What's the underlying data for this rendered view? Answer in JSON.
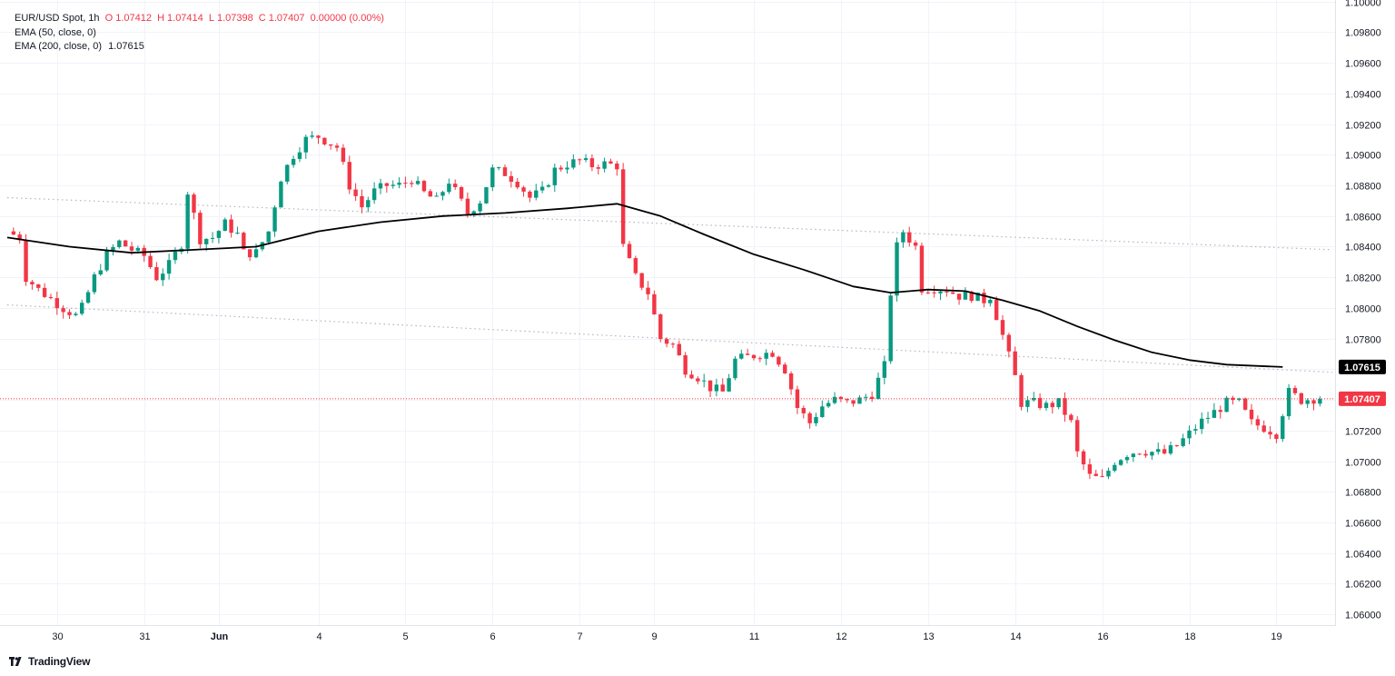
{
  "legend": {
    "symbol": "EUR/USD Spot, 1h",
    "ohlc": {
      "o_label": "O",
      "o": "1.07412",
      "h_label": "H",
      "h": "1.07414",
      "l_label": "L",
      "l": "1.07398",
      "c_label": "C",
      "c": "1.07407",
      "change": "0.00000 (0.00%)"
    },
    "ema50": "EMA (50, close, 0)",
    "ema200": "EMA (200, close, 0)",
    "ema200_value": "1.07615"
  },
  "brand": {
    "name": "TradingView"
  },
  "colors": {
    "up": "#089981",
    "down": "#f23645",
    "ema200": "#000000",
    "grid": "#f0f3fa",
    "trendline": "#b2b5be",
    "last_price": "#f23645"
  },
  "chart_data": {
    "type": "candlestick",
    "title": "EUR/USD Spot, 1h",
    "ylim": [
      1.0593,
      1.1001
    ],
    "y_ticks": [
      "1.10000",
      "1.09800",
      "1.09600",
      "1.09400",
      "1.09200",
      "1.09000",
      "1.08800",
      "1.08600",
      "1.08400",
      "1.08200",
      "1.08000",
      "1.07800",
      "1.07600",
      "1.07400",
      "1.07200",
      "1.07000",
      "1.06800",
      "1.06600",
      "1.06400",
      "1.06200",
      "1.06000"
    ],
    "x_ticks": [
      {
        "label": "30",
        "idx": 8
      },
      {
        "label": "31",
        "idx": 22
      },
      {
        "label": "Jun",
        "idx": 34
      },
      {
        "label": "4",
        "idx": 50
      },
      {
        "label": "5",
        "idx": 64
      },
      {
        "label": "6",
        "idx": 78
      },
      {
        "label": "7",
        "idx": 92
      },
      {
        "label": "9",
        "idx": 104
      },
      {
        "label": "11",
        "idx": 120
      },
      {
        "label": "12",
        "idx": 134
      },
      {
        "label": "13",
        "idx": 148
      },
      {
        "label": "14",
        "idx": 162
      },
      {
        "label": "16",
        "idx": 176
      },
      {
        "label": "18",
        "idx": 190
      },
      {
        "label": "19",
        "idx": 204
      }
    ],
    "n_slots": 208,
    "price_points": [
      [
        0,
        1.085
      ],
      [
        2,
        1.0846
      ],
      [
        3,
        1.082
      ],
      [
        5,
        1.0812
      ],
      [
        7,
        1.0806
      ],
      [
        9,
        1.08
      ],
      [
        11,
        1.0795
      ],
      [
        12,
        1.08
      ],
      [
        14,
        1.082
      ],
      [
        16,
        1.0835
      ],
      [
        18,
        1.0843
      ],
      [
        20,
        1.0838
      ],
      [
        22,
        1.0834
      ],
      [
        24,
        1.082
      ],
      [
        26,
        1.0828
      ],
      [
        28,
        1.0842
      ],
      [
        29,
        1.0876
      ],
      [
        31,
        1.0845
      ],
      [
        33,
        1.0846
      ],
      [
        35,
        1.0855
      ],
      [
        37,
        1.0848
      ],
      [
        38,
        1.0836
      ],
      [
        40,
        1.0836
      ],
      [
        42,
        1.085
      ],
      [
        44,
        1.0885
      ],
      [
        46,
        1.09
      ],
      [
        48,
        1.091
      ],
      [
        50,
        1.0912
      ],
      [
        53,
        1.0905
      ],
      [
        55,
        1.088
      ],
      [
        57,
        1.0866
      ],
      [
        59,
        1.0876
      ],
      [
        61,
        1.088
      ],
      [
        63,
        1.088
      ],
      [
        65,
        1.0884
      ],
      [
        67,
        1.0875
      ],
      [
        69,
        1.087
      ],
      [
        71,
        1.0883
      ],
      [
        72,
        1.0876
      ],
      [
        74,
        1.0862
      ],
      [
        76,
        1.087
      ],
      [
        78,
        1.089
      ],
      [
        80,
        1.0888
      ],
      [
        82,
        1.0882
      ],
      [
        84,
        1.0872
      ],
      [
        86,
        1.0876
      ],
      [
        88,
        1.089
      ],
      [
        90,
        1.0894
      ],
      [
        92,
        1.0896
      ],
      [
        94,
        1.0893
      ],
      [
        96,
        1.0894
      ],
      [
        98,
        1.0893
      ],
      [
        99,
        1.084
      ],
      [
        101,
        1.082
      ],
      [
        103,
        1.081
      ],
      [
        105,
        1.078
      ],
      [
        107,
        1.0776
      ],
      [
        109,
        1.076
      ],
      [
        111,
        1.0755
      ],
      [
        113,
        1.0748
      ],
      [
        115,
        1.0745
      ],
      [
        117,
        1.0766
      ],
      [
        119,
        1.0768
      ],
      [
        121,
        1.077
      ],
      [
        123,
        1.0771
      ],
      [
        125,
        1.076
      ],
      [
        127,
        1.0735
      ],
      [
        129,
        1.0725
      ],
      [
        131,
        1.0736
      ],
      [
        133,
        1.074
      ],
      [
        135,
        1.0738
      ],
      [
        137,
        1.074
      ],
      [
        139,
        1.0744
      ],
      [
        141,
        1.0762
      ],
      [
        142,
        1.081
      ],
      [
        143,
        1.084
      ],
      [
        144,
        1.085
      ],
      [
        146,
        1.084
      ],
      [
        147,
        1.0813
      ],
      [
        149,
        1.0813
      ],
      [
        151,
        1.0812
      ],
      [
        153,
        1.0808
      ],
      [
        155,
        1.0808
      ],
      [
        157,
        1.0805
      ],
      [
        158,
        1.0808
      ],
      [
        160,
        1.0782
      ],
      [
        162,
        1.0755
      ],
      [
        163,
        1.0738
      ],
      [
        165,
        1.0738
      ],
      [
        167,
        1.0736
      ],
      [
        169,
        1.0738
      ],
      [
        171,
        1.0725
      ],
      [
        172,
        1.0705
      ],
      [
        174,
        1.069
      ],
      [
        176,
        1.0688
      ],
      [
        178,
        1.07
      ],
      [
        180,
        1.0705
      ],
      [
        182,
        1.0707
      ],
      [
        184,
        1.0706
      ],
      [
        186,
        1.0705
      ],
      [
        188,
        1.071
      ],
      [
        190,
        1.0718
      ],
      [
        192,
        1.0726
      ],
      [
        194,
        1.0732
      ],
      [
        196,
        1.0738
      ],
      [
        198,
        1.0738
      ],
      [
        200,
        1.0725
      ],
      [
        202,
        1.0722
      ],
      [
        204,
        1.0718
      ],
      [
        205,
        1.0732
      ],
      [
        206,
        1.0745
      ],
      [
        208,
        1.074
      ],
      [
        210,
        1.0741
      ],
      [
        211,
        1.07407
      ]
    ],
    "ema200": [
      [
        0,
        1.0846
      ],
      [
        10,
        1.084
      ],
      [
        20,
        1.0836
      ],
      [
        30,
        1.0838
      ],
      [
        40,
        1.084
      ],
      [
        50,
        1.085
      ],
      [
        60,
        1.0856
      ],
      [
        70,
        1.086
      ],
      [
        80,
        1.0862
      ],
      [
        90,
        1.0865
      ],
      [
        98,
        1.0868
      ],
      [
        105,
        1.086
      ],
      [
        112,
        1.0848
      ],
      [
        120,
        1.0835
      ],
      [
        128,
        1.0825
      ],
      [
        136,
        1.0814
      ],
      [
        142,
        1.081
      ],
      [
        148,
        1.0812
      ],
      [
        154,
        1.0811
      ],
      [
        160,
        1.0805
      ],
      [
        166,
        1.0798
      ],
      [
        172,
        1.0788
      ],
      [
        178,
        1.0779
      ],
      [
        184,
        1.0771
      ],
      [
        190,
        1.0766
      ],
      [
        196,
        1.0763
      ],
      [
        205,
        1.07615
      ]
    ],
    "trendlines": [
      {
        "from": [
          0,
          1.0872
        ],
        "to": [
          213,
          1.0838
        ]
      },
      {
        "from": [
          0,
          1.0802
        ],
        "to": [
          213,
          1.0758
        ]
      }
    ],
    "last_price": 1.07407,
    "last_price_label": "1.07407",
    "ema200_label": "1.07615"
  }
}
